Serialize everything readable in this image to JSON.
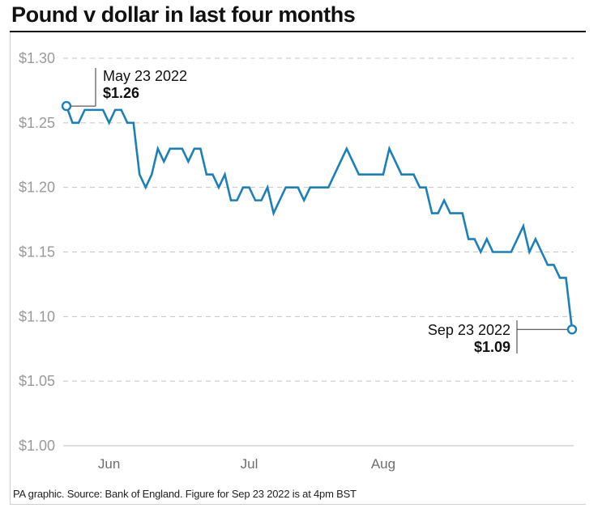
{
  "chart_data": {
    "type": "line",
    "title": "Pound v dollar in last four months",
    "xlabel": "",
    "ylabel": "",
    "ylim": [
      1.0,
      1.3
    ],
    "yticks": [
      "$1.30",
      "$1.25",
      "$1.20",
      "$1.15",
      "$1.10",
      "$1.05",
      "$1.00"
    ],
    "ytick_values": [
      1.3,
      1.25,
      1.2,
      1.15,
      1.1,
      1.05,
      1.0
    ],
    "xtick_labels": [
      "Jun",
      "Jul",
      "Aug"
    ],
    "xtick_positions": [
      7,
      30,
      52
    ],
    "grid": "horizontal dashed",
    "line_color": "#1f7fb5",
    "series": [
      {
        "name": "",
        "values": [
          1.263,
          1.25,
          1.25,
          1.26,
          1.26,
          1.26,
          1.26,
          1.25,
          1.26,
          1.26,
          1.25,
          1.25,
          1.21,
          1.2,
          1.21,
          1.23,
          1.22,
          1.23,
          1.23,
          1.23,
          1.22,
          1.23,
          1.23,
          1.21,
          1.21,
          1.2,
          1.21,
          1.19,
          1.19,
          1.2,
          1.2,
          1.19,
          1.19,
          1.2,
          1.18,
          1.19,
          1.2,
          1.2,
          1.2,
          1.19,
          1.2,
          1.2,
          1.2,
          1.2,
          1.21,
          1.22,
          1.23,
          1.22,
          1.21,
          1.21,
          1.21,
          1.21,
          1.21,
          1.23,
          1.22,
          1.21,
          1.21,
          1.21,
          1.2,
          1.2,
          1.18,
          1.18,
          1.19,
          1.18,
          1.18,
          1.18,
          1.16,
          1.16,
          1.15,
          1.16,
          1.15,
          1.15,
          1.15,
          1.15,
          1.16,
          1.17,
          1.15,
          1.16,
          1.15,
          1.14,
          1.14,
          1.13,
          1.13,
          1.09
        ]
      }
    ],
    "annotations": [
      {
        "label": "May 23 2022",
        "value": "$1.26"
      },
      {
        "label": "Sep 23 2022",
        "value": "$1.09"
      }
    ]
  },
  "footnote": "PA graphic. Source: Bank of England. Figure for Sep 23 2022 is at 4pm BST"
}
